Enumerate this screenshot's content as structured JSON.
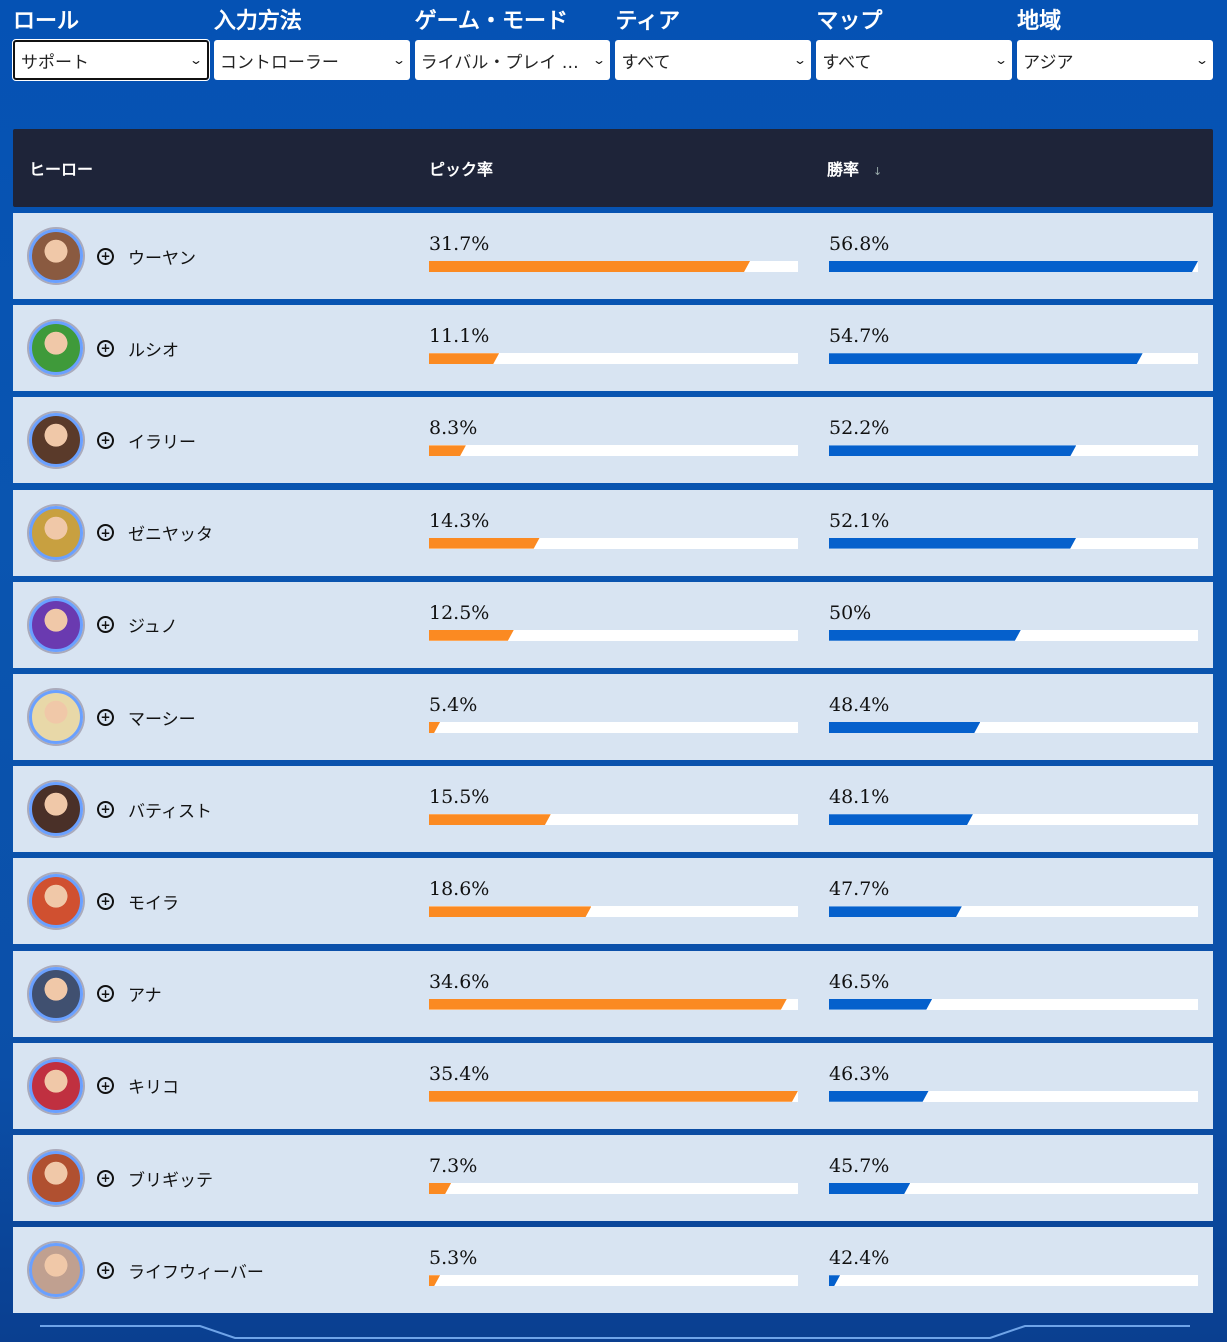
{
  "filters": [
    {
      "label": "ロール",
      "value": "サポート"
    },
    {
      "label": "入力方法",
      "value": "コントローラー"
    },
    {
      "label": "ゲーム・モード",
      "value": "ライバル・プレイ …"
    },
    {
      "label": "ティア",
      "value": "すべて"
    },
    {
      "label": "マップ",
      "value": "すべて"
    },
    {
      "label": "地域",
      "value": "アジア"
    }
  ],
  "table": {
    "headers": {
      "hero": "ヒーロー",
      "pick": "ピック率",
      "win": "勝率",
      "sort_icon": "↓"
    },
    "rows": [
      {
        "name": "ウーヤン",
        "pick": "31.7%",
        "pick_fill": 0.87,
        "win": "56.8%",
        "win_fill": 1.0,
        "color": "#8a5a40"
      },
      {
        "name": "ルシオ",
        "pick": "11.1%",
        "pick_fill": 0.19,
        "win": "54.7%",
        "win_fill": 0.85,
        "color": "#3f9a3a"
      },
      {
        "name": "イラリー",
        "pick": "8.3%",
        "pick_fill": 0.1,
        "win": "52.2%",
        "win_fill": 0.67,
        "color": "#5a3a2a"
      },
      {
        "name": "ゼニヤッタ",
        "pick": "14.3%",
        "pick_fill": 0.3,
        "win": "52.1%",
        "win_fill": 0.67,
        "color": "#c8a040"
      },
      {
        "name": "ジュノ",
        "pick": "12.5%",
        "pick_fill": 0.23,
        "win": "50%",
        "win_fill": 0.52,
        "color": "#6a3ab0"
      },
      {
        "name": "マーシー",
        "pick": "5.4%",
        "pick_fill": 0.03,
        "win": "48.4%",
        "win_fill": 0.41,
        "color": "#e8d8a8"
      },
      {
        "name": "バティスト",
        "pick": "15.5%",
        "pick_fill": 0.33,
        "win": "48.1%",
        "win_fill": 0.39,
        "color": "#4a3028"
      },
      {
        "name": "モイラ",
        "pick": "18.6%",
        "pick_fill": 0.44,
        "win": "47.7%",
        "win_fill": 0.36,
        "color": "#d05030"
      },
      {
        "name": "アナ",
        "pick": "34.6%",
        "pick_fill": 0.97,
        "win": "46.5%",
        "win_fill": 0.28,
        "color": "#405070"
      },
      {
        "name": "キリコ",
        "pick": "35.4%",
        "pick_fill": 1.0,
        "win": "46.3%",
        "win_fill": 0.27,
        "color": "#c03040"
      },
      {
        "name": "ブリギッテ",
        "pick": "7.3%",
        "pick_fill": 0.06,
        "win": "45.7%",
        "win_fill": 0.22,
        "color": "#b05030"
      },
      {
        "name": "ライフウィーバー",
        "pick": "5.3%",
        "pick_fill": 0.03,
        "win": "42.4%",
        "win_fill": 0.03,
        "color": "#c0a090"
      }
    ]
  }
}
